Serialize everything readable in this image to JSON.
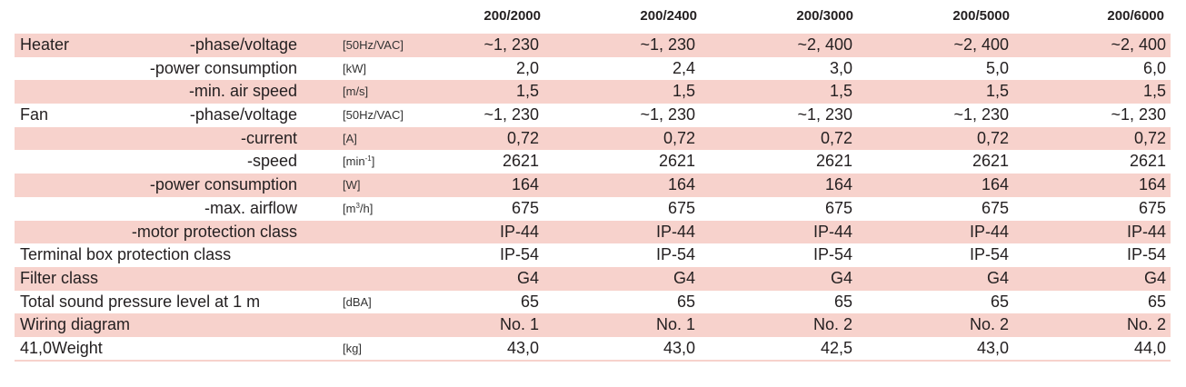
{
  "models": [
    "200/2000",
    "200/2400",
    "200/3000",
    "200/5000",
    "200/6000"
  ],
  "rows": [
    {
      "name": "Heater",
      "sub": "-phase/voltage",
      "unit": "[50Hz/VAC]",
      "values": [
        "~1, 230",
        "~1, 230",
        "~2, 400",
        "~2, 400",
        "~2, 400"
      ]
    },
    {
      "name": "",
      "sub": "-power consumption",
      "unit": "[kW]",
      "values": [
        "2,0",
        "2,4",
        "3,0",
        "5,0",
        "6,0"
      ]
    },
    {
      "name": "",
      "sub": "-min. air speed",
      "unit": "[m/s]",
      "values": [
        "1,5",
        "1,5",
        "1,5",
        "1,5",
        "1,5"
      ]
    },
    {
      "name": "Fan",
      "sub": "-phase/voltage",
      "unit": "[50Hz/VAC]",
      "values": [
        "~1, 230",
        "~1, 230",
        "~1, 230",
        "~1, 230",
        "~1, 230"
      ]
    },
    {
      "name": "",
      "sub": "-current",
      "unit": "[A]",
      "values": [
        "0,72",
        "0,72",
        "0,72",
        "0,72",
        "0,72"
      ]
    },
    {
      "name": "",
      "sub": "-speed",
      "unit": "[min",
      "unit_sup": "-1",
      "unit_tail": "]",
      "values": [
        "2621",
        "2621",
        "2621",
        "2621",
        "2621"
      ]
    },
    {
      "name": "",
      "sub": "-power consumption",
      "unit": "[W]",
      "values": [
        "164",
        "164",
        "164",
        "164",
        "164"
      ]
    },
    {
      "name": "",
      "sub": "-max. airflow",
      "unit": "[m",
      "unit_sup": "3",
      "unit_tail": "/h]",
      "values": [
        "675",
        "675",
        "675",
        "675",
        "675"
      ]
    },
    {
      "name": "",
      "sub": "-motor protection class",
      "unit": "",
      "values": [
        "IP-44",
        "IP-44",
        "IP-44",
        "IP-44",
        "IP-44"
      ]
    },
    {
      "name": "Terminal box protection class",
      "sub": "",
      "unit": "",
      "values": [
        "IP-54",
        "IP-54",
        "IP-54",
        "IP-54",
        "IP-54"
      ]
    },
    {
      "name": "Filter class",
      "sub": "",
      "unit": "",
      "values": [
        "G4",
        "G4",
        "G4",
        "G4",
        "G4"
      ]
    },
    {
      "name": "Total sound pressure level at 1 m",
      "sub": "",
      "unit": "[dBA]",
      "values": [
        "65",
        "65",
        "65",
        "65",
        "65"
      ]
    },
    {
      "name": "Wiring diagram",
      "sub": "",
      "unit": "",
      "values": [
        "No. 1",
        "No. 1",
        "No. 2",
        "No. 2",
        "No. 2"
      ]
    },
    {
      "name": "41,0Weight",
      "sub": "",
      "unit": "[kg]",
      "values": [
        "43,0",
        "43,0",
        "42,5",
        "43,0",
        "44,0"
      ]
    }
  ]
}
